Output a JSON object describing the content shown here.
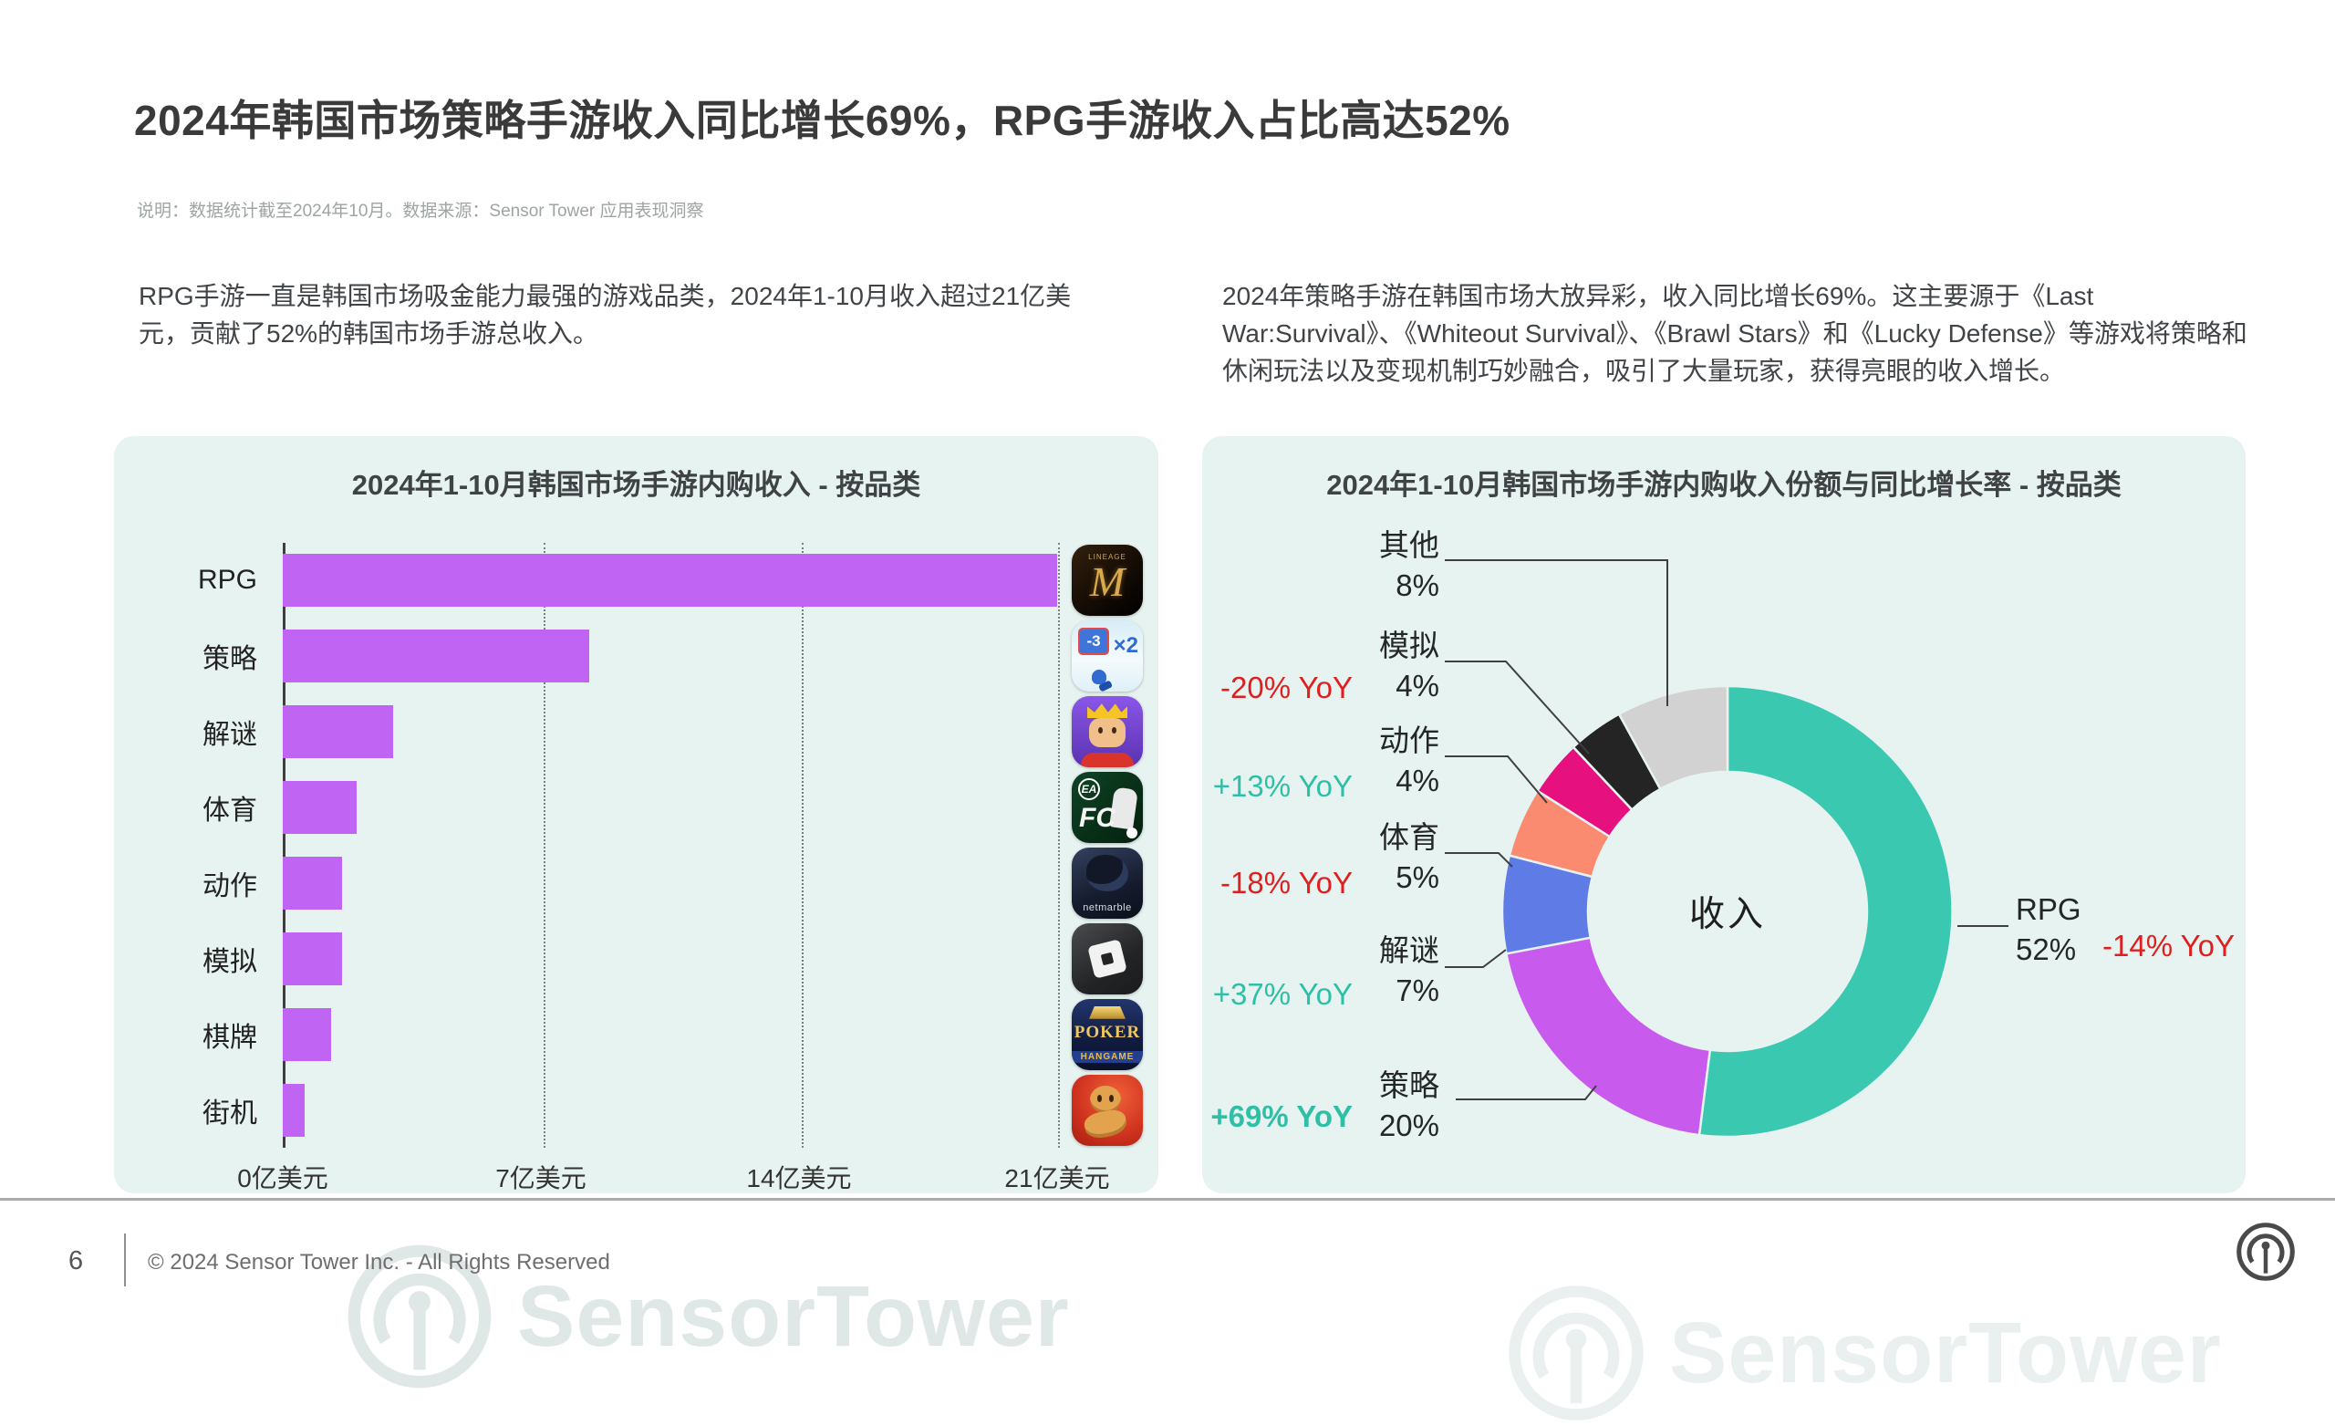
{
  "page": {
    "title": "2024年韩国市场策略手游收入同比增长69%，RPG手游收入占比高达52%",
    "note": "说明：数据统计截至2024年10月。数据来源：Sensor Tower 应用表现洞察",
    "left_paragraph": "RPG手游一直是韩国市场吸金能力最强的游戏品类，2024年1-10月收入超过21亿美元，贡献了52%的韩国市场手游总收入。",
    "right_paragraph": "2024年策略手游在韩国市场大放异彩，收入同比增长69%。这主要源于《Last War:Survival》、《Whiteout Survival》、《Brawl Stars》和《Lucky Defense》等游戏将策略和休闲玩法以及变现机制巧妙融合，吸引了大量玩家，获得亮眼的收入增长。",
    "watermark": "SensorTower",
    "footer": {
      "page_number": "6",
      "copyright": "© 2024 Sensor Tower Inc. - All Rights Reserved"
    }
  },
  "chart_data": [
    {
      "type": "bar",
      "orientation": "horizontal",
      "title": "2024年1-10月韩国市场手游内购收入 - 按品类",
      "categories": [
        "RPG",
        "策略",
        "解谜",
        "体育",
        "动作",
        "模拟",
        "棋牌",
        "街机"
      ],
      "values": [
        21,
        8.3,
        3.0,
        2.0,
        1.6,
        1.6,
        1.3,
        0.6
      ],
      "unit": "亿美元",
      "xlim": [
        0,
        21
      ],
      "x_ticks": [
        "0亿美元",
        "7亿美元",
        "14亿美元",
        "21亿美元"
      ],
      "bar_color": "#c064f4",
      "grid": "dotted-vertical",
      "row_icons": [
        "lineage-m",
        "last-war-survival",
        "royal-match",
        "ea-sports-fc",
        "netmarble-rpg",
        "roblox",
        "poker-hangame",
        "cookie-run"
      ]
    },
    {
      "type": "donut",
      "title": "2024年1-10月韩国市场手游内购收入份额与同比增长率 - 按品类",
      "center_label": "收入",
      "start_angle_deg": 0,
      "segments": [
        {
          "label": "RPG",
          "share": 52,
          "yoy": "-14% YoY",
          "yoy_dir": "down",
          "color": "#3bc8b1"
        },
        {
          "label": "策略",
          "share": 20,
          "yoy": "+69% YoY",
          "yoy_dir": "up",
          "color": "#c85aee"
        },
        {
          "label": "解谜",
          "share": 7,
          "yoy": "+37% YoY",
          "yoy_dir": "up",
          "color": "#5f7be6"
        },
        {
          "label": "体育",
          "share": 5,
          "yoy": "-18% YoY",
          "yoy_dir": "down",
          "color": "#fb8b70"
        },
        {
          "label": "动作",
          "share": 4,
          "yoy": "+13% YoY",
          "yoy_dir": "up",
          "color": "#e6117e"
        },
        {
          "label": "模拟",
          "share": 4,
          "yoy": "-20% YoY",
          "yoy_dir": "down",
          "color": "#242424"
        },
        {
          "label": "其他",
          "share": 8,
          "yoy": "",
          "yoy_dir": "none",
          "color": "#d2d2d2"
        }
      ],
      "yoy_colors": {
        "up": "#2fbfa6",
        "down": "#df1f1f"
      }
    }
  ]
}
